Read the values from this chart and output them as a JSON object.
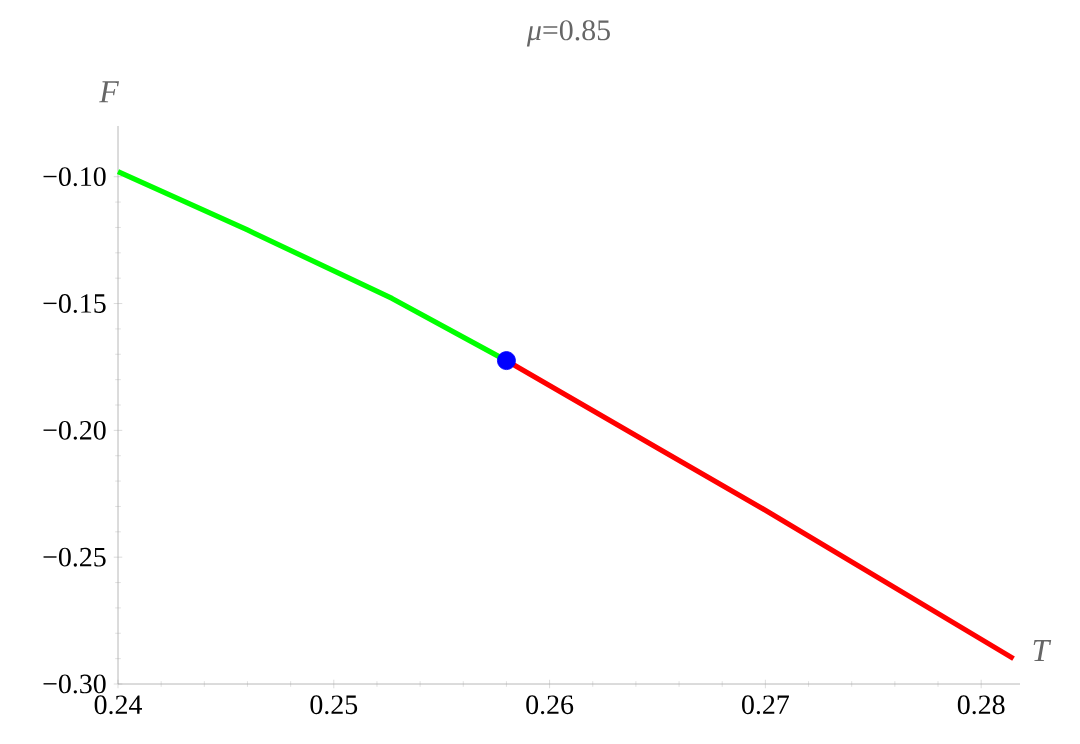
{
  "chart_data": {
    "type": "line",
    "title": "*μ*=0.85",
    "xlabel": "T",
    "ylabel": "F",
    "xlim": [
      0.24,
      0.2818
    ],
    "ylim": [
      -0.3,
      -0.08
    ],
    "xticks": [
      0.24,
      0.25,
      0.26,
      0.27,
      0.28
    ],
    "yticks": [
      {
        "value": -0.3,
        "label": "−0.30"
      },
      {
        "value": -0.25,
        "label": "−0.25"
      },
      {
        "value": -0.2,
        "label": "−0.20"
      },
      {
        "value": -0.15,
        "label": "−0.15"
      },
      {
        "value": -0.1,
        "label": "−0.10"
      }
    ],
    "grid": false,
    "series": [
      {
        "color": "#00ff00",
        "x": [
          0.24,
          0.246,
          0.2527,
          0.258
        ],
        "values": [
          -0.098,
          -0.121,
          -0.148,
          -0.1725
        ]
      },
      {
        "color": "#ff0000",
        "x": [
          0.258,
          0.265,
          0.27,
          0.2815
        ],
        "values": [
          -0.1725,
          -0.207,
          -0.2315,
          -0.29
        ]
      },
      {
        "type": "scatter",
        "color": "#0000ff",
        "x": [
          0.258
        ],
        "values": [
          -0.1725
        ]
      }
    ]
  }
}
